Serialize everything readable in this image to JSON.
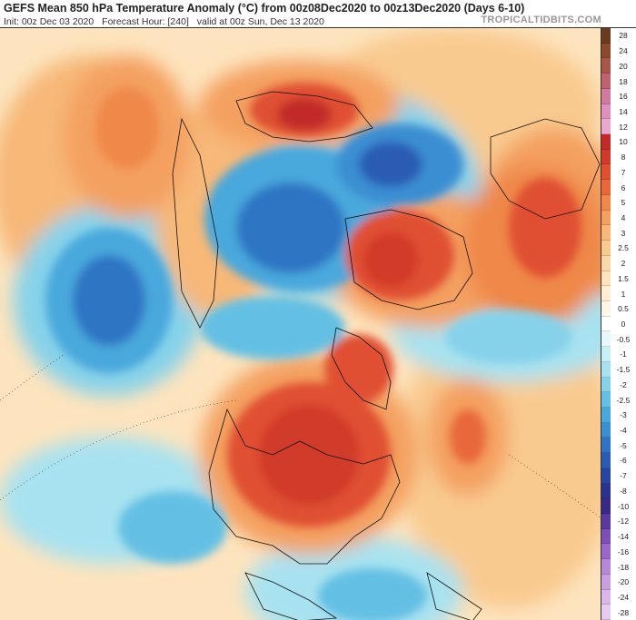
{
  "header": {
    "title": "GEFS Mean 850 hPa Temperature Anomaly (°C) from 00z08Dec2020 to 00z13Dec2020 (Days 6-10)",
    "init": "Init: 00z Dec 03 2020",
    "forecast_hour": "Forecast Hour: [240]",
    "valid": "valid at 00z Sun, Dec 13 2020",
    "brand": "TROPICALTIDBITS.COM"
  },
  "colorbar": {
    "labels": [
      "28",
      "24",
      "20",
      "18",
      "16",
      "14",
      "12",
      "10",
      "8",
      "7",
      "6",
      "5",
      "4",
      "3",
      "2.5",
      "2",
      "1.5",
      "1",
      "0.5",
      "0",
      "-0.5",
      "-1",
      "-1.5",
      "-2",
      "-2.5",
      "-3",
      "-4",
      "-5",
      "-6",
      "-7",
      "-8",
      "-10",
      "-12",
      "-14",
      "-16",
      "-18",
      "-20",
      "-24",
      "-28"
    ],
    "colors": [
      "#6b3a1e",
      "#8b4a2a",
      "#a8564a",
      "#c06070",
      "#d07aa0",
      "#e090c0",
      "#e8a8d0",
      "#c22a2a",
      "#d03a2a",
      "#e05030",
      "#e8683a",
      "#ef8848",
      "#f4a060",
      "#f7b878",
      "#f9ca90",
      "#fbd8a8",
      "#fde4be",
      "#fdeed4",
      "#fef7e8",
      "#ffffff",
      "#e8f7fb",
      "#c8eef6",
      "#a8e2f0",
      "#86d2ea",
      "#64c0e4",
      "#48a8dc",
      "#3a8ed2",
      "#2f74c4",
      "#2a5cb4",
      "#2746a2",
      "#2a3490",
      "#3a2a88",
      "#5a3aa0",
      "#7a50b8",
      "#9a68cc",
      "#b888d8",
      "#c8a0e0",
      "#d8b8e8",
      "#e6ccf0"
    ]
  }
}
